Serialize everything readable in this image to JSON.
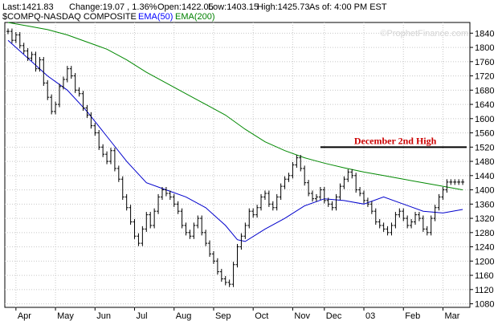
{
  "header": {
    "last": "Last:1421.83",
    "change": "Change:19.07 , 1.36%",
    "open": "Open:1422.05",
    "low": "Low:1403.15",
    "high": "High:1425.73",
    "asof": "As of:  4:00 PM EST"
  },
  "legend": [
    {
      "label": "$COMPQ-NASDAQ COMPOSITE",
      "color": "#000000"
    },
    {
      "label": "EMA(50)",
      "color": "#0000ff"
    },
    {
      "label": "EMA(200)",
      "color": "#008000"
    }
  ],
  "watermark": "©ProphetFinance.com",
  "colors": {
    "price": "#000000",
    "ema50": "#0000cc",
    "ema200": "#008800",
    "annotation": "#cc0000",
    "annotation_line": "#000000",
    "background": "#ffffff",
    "grid": "#c8c8c8"
  },
  "chart_data": {
    "type": "line",
    "title": "",
    "xlabel": "",
    "ylabel": "",
    "ylim": [
      1070,
      1870
    ],
    "grid": true,
    "legend_position": "top-left",
    "y_ticks": [
      1080,
      1120,
      1160,
      1200,
      1240,
      1280,
      1320,
      1360,
      1400,
      1440,
      1480,
      1520,
      1560,
      1600,
      1640,
      1680,
      1720,
      1760,
      1800,
      1840
    ],
    "x_tick_labels": [
      "Apr",
      "May",
      "Jun",
      "Jul",
      "Aug",
      "Sep",
      "Oct",
      "Nov",
      "Dec",
      "03",
      "Feb",
      "Mar"
    ],
    "x_tick_positions": [
      4,
      24,
      44,
      64,
      84,
      104,
      124,
      144,
      160,
      180,
      200,
      220
    ],
    "x_range": [
      0,
      232
    ],
    "series": [
      {
        "name": "$COMPQ-NASDAQ COMPOSITE",
        "style": "ohlc-bars",
        "x": [
          0,
          2,
          4,
          6,
          8,
          10,
          12,
          14,
          16,
          18,
          20,
          22,
          24,
          26,
          28,
          30,
          32,
          34,
          36,
          38,
          40,
          42,
          44,
          46,
          48,
          50,
          52,
          54,
          56,
          58,
          60,
          62,
          64,
          66,
          68,
          70,
          72,
          74,
          76,
          78,
          80,
          82,
          84,
          86,
          88,
          90,
          92,
          94,
          96,
          98,
          100,
          102,
          104,
          106,
          108,
          110,
          112,
          114,
          116,
          118,
          120,
          122,
          124,
          126,
          128,
          130,
          132,
          134,
          136,
          138,
          140,
          142,
          144,
          146,
          148,
          150,
          152,
          154,
          156,
          158,
          160,
          162,
          164,
          166,
          168,
          170,
          172,
          174,
          176,
          178,
          180,
          182,
          184,
          186,
          188,
          190,
          192,
          194,
          196,
          198,
          200,
          202,
          204,
          206,
          208,
          210,
          212,
          214,
          216,
          218,
          220,
          222,
          224,
          226,
          228,
          230
        ],
        "values": [
          1845,
          1820,
          1835,
          1805,
          1790,
          1770,
          1780,
          1740,
          1765,
          1700,
          1660,
          1620,
          1640,
          1690,
          1710,
          1740,
          1720,
          1680,
          1670,
          1630,
          1610,
          1580,
          1560,
          1520,
          1500,
          1480,
          1510,
          1460,
          1430,
          1380,
          1350,
          1310,
          1270,
          1250,
          1290,
          1330,
          1300,
          1340,
          1380,
          1400,
          1390,
          1380,
          1360,
          1340,
          1300,
          1280,
          1270,
          1300,
          1320,
          1280,
          1250,
          1220,
          1200,
          1170,
          1150,
          1140,
          1135,
          1190,
          1240,
          1270,
          1300,
          1340,
          1330,
          1350,
          1380,
          1390,
          1360,
          1350,
          1380,
          1410,
          1430,
          1440,
          1470,
          1490,
          1460,
          1420,
          1390,
          1375,
          1380,
          1400,
          1370,
          1360,
          1350,
          1380,
          1410,
          1430,
          1450,
          1440,
          1400,
          1390,
          1370,
          1360,
          1340,
          1310,
          1300,
          1290,
          1280,
          1300,
          1330,
          1340,
          1320,
          1300,
          1310,
          1330,
          1320,
          1290,
          1280,
          1320,
          1350,
          1380,
          1400,
          1421.83,
          1421.83,
          1421.83,
          1421.83,
          1421.83
        ]
      },
      {
        "name": "EMA(50)",
        "x": [
          0,
          10,
          20,
          30,
          40,
          50,
          60,
          70,
          80,
          90,
          100,
          110,
          116,
          120,
          130,
          140,
          150,
          160,
          170,
          180,
          190,
          200,
          210,
          220,
          230
        ],
        "values": [
          1820,
          1770,
          1720,
          1680,
          1620,
          1550,
          1480,
          1420,
          1400,
          1380,
          1350,
          1300,
          1260,
          1255,
          1290,
          1320,
          1355,
          1375,
          1370,
          1360,
          1380,
          1360,
          1340,
          1335,
          1345
        ]
      },
      {
        "name": "EMA(200)",
        "x": [
          0,
          10,
          20,
          30,
          40,
          50,
          60,
          70,
          80,
          90,
          100,
          110,
          120,
          130,
          140,
          150,
          160,
          170,
          180,
          190,
          200,
          210,
          220,
          230
        ],
        "values": [
          1870,
          1860,
          1850,
          1835,
          1815,
          1795,
          1765,
          1730,
          1700,
          1670,
          1640,
          1610,
          1570,
          1535,
          1510,
          1490,
          1475,
          1462,
          1450,
          1440,
          1430,
          1420,
          1410,
          1400
        ]
      }
    ],
    "annotations": [
      {
        "text": "December 2nd High",
        "level": 1520,
        "x_start": 158,
        "x_end": 232
      }
    ]
  }
}
